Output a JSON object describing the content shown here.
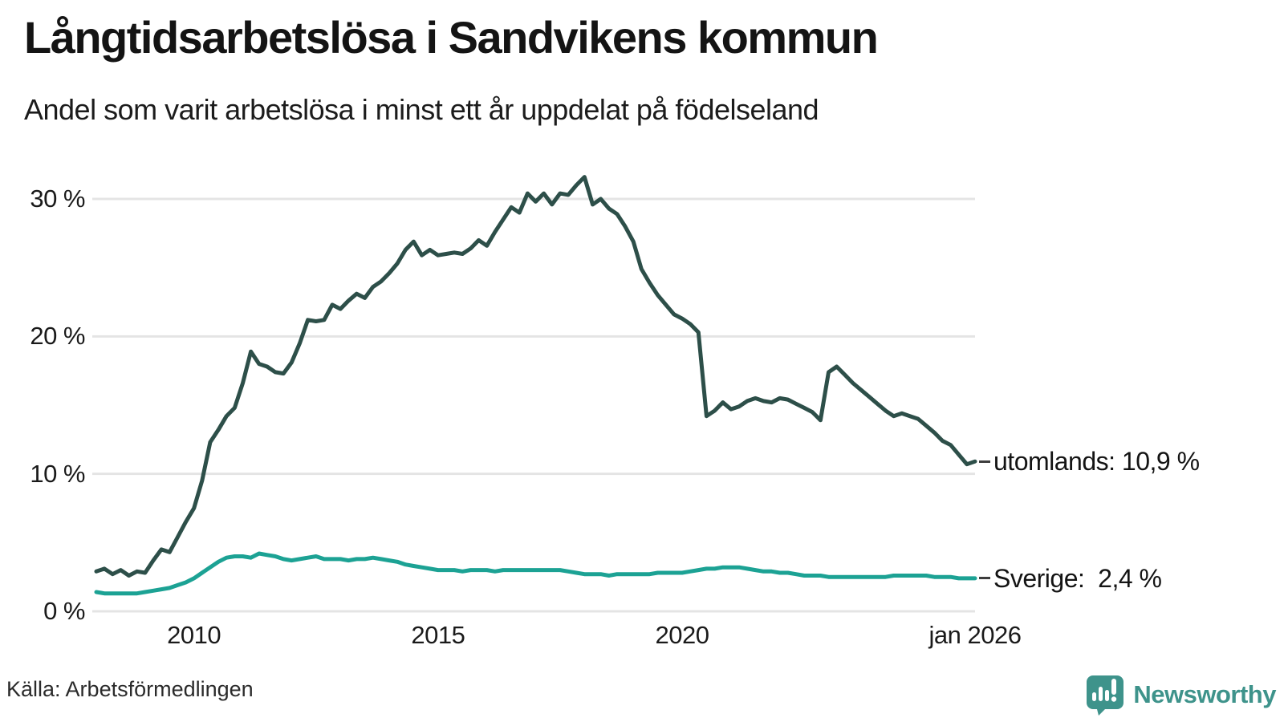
{
  "header": {
    "title": "Långtidsarbetslösa i Sandvikens kommun",
    "subtitle": "Andel som varit arbetslösa i minst ett år uppdelat på födelseland"
  },
  "footer": {
    "source": "Källa: Arbetsförmedlingen",
    "brand": "Newsworthy",
    "brand_color": "#3e938b"
  },
  "colors": {
    "utomlands_line": "#2d4f49",
    "sverige_line": "#1ca294",
    "gridline": "#e4e4e4",
    "text": "#1a1a1a",
    "dash": "#3d3d3d"
  },
  "chart_data": {
    "type": "line",
    "title": "Långtidsarbetslösa i Sandvikens kommun",
    "subtitle": "Andel som varit arbetslösa i minst ett år uppdelat på födelseland",
    "xlabel": "",
    "ylabel": "",
    "grid": "horizontal",
    "legend_position": "right-end-labels",
    "xlim": [
      2008,
      2026
    ],
    "ylim": [
      0,
      30
    ],
    "x_start": 2008,
    "x_step": 0.1666667,
    "y_ticks": [
      {
        "label": "0 %",
        "value": 0
      },
      {
        "label": "10 %",
        "value": 10
      },
      {
        "label": "20 %",
        "value": 20
      },
      {
        "label": "30 %",
        "value": 30
      }
    ],
    "x_ticks": [
      {
        "label": "2010",
        "value": 2010
      },
      {
        "label": "2015",
        "value": 2015
      },
      {
        "label": "2020",
        "value": 2020
      },
      {
        "label": "jan 2026",
        "value": 2026
      }
    ],
    "series": [
      {
        "name": "utomlands",
        "label": "utomlands: 10,9 %",
        "last_value_text": "10,9 %",
        "color": "#2d4f49",
        "values": [
          2.9,
          3.1,
          2.7,
          3.0,
          2.6,
          2.9,
          2.8,
          3.7,
          4.5,
          4.3,
          5.4,
          6.5,
          7.5,
          9.5,
          12.3,
          13.2,
          14.2,
          14.8,
          16.6,
          18.9,
          18.0,
          17.8,
          17.4,
          17.3,
          18.1,
          19.5,
          21.2,
          21.1,
          21.2,
          22.3,
          22.0,
          22.6,
          23.1,
          22.8,
          23.6,
          24.0,
          24.6,
          25.3,
          26.3,
          26.9,
          25.9,
          26.3,
          25.9,
          26.0,
          26.1,
          26.0,
          26.4,
          27.0,
          26.6,
          27.6,
          28.5,
          29.4,
          29.0,
          30.4,
          29.8,
          30.4,
          29.6,
          30.4,
          30.3,
          31.0,
          31.6,
          29.6,
          30.0,
          29.3,
          28.9,
          28.0,
          26.9,
          24.9,
          23.9,
          23.0,
          22.3,
          21.6,
          21.3,
          20.9,
          20.3,
          14.2,
          14.6,
          15.2,
          14.7,
          14.9,
          15.3,
          15.5,
          15.3,
          15.2,
          15.5,
          15.4,
          15.1,
          14.8,
          14.5,
          13.9,
          17.4,
          17.8,
          17.2,
          16.6,
          16.1,
          15.6,
          15.1,
          14.6,
          14.2,
          14.4,
          14.2,
          14.0,
          13.5,
          13.0,
          12.4,
          12.1,
          11.4,
          10.7,
          10.9
        ]
      },
      {
        "name": "Sverige",
        "label": "Sverige:  2,4 %",
        "last_value_text": "2,4 %",
        "color": "#1ca294",
        "values": [
          1.4,
          1.3,
          1.3,
          1.3,
          1.3,
          1.3,
          1.4,
          1.5,
          1.6,
          1.7,
          1.9,
          2.1,
          2.4,
          2.8,
          3.2,
          3.6,
          3.9,
          4.0,
          4.0,
          3.9,
          4.2,
          4.1,
          4.0,
          3.8,
          3.7,
          3.8,
          3.9,
          4.0,
          3.8,
          3.8,
          3.8,
          3.7,
          3.8,
          3.8,
          3.9,
          3.8,
          3.7,
          3.6,
          3.4,
          3.3,
          3.2,
          3.1,
          3.0,
          3.0,
          3.0,
          2.9,
          3.0,
          3.0,
          3.0,
          2.9,
          3.0,
          3.0,
          3.0,
          3.0,
          3.0,
          3.0,
          3.0,
          3.0,
          2.9,
          2.8,
          2.7,
          2.7,
          2.7,
          2.6,
          2.7,
          2.7,
          2.7,
          2.7,
          2.7,
          2.8,
          2.8,
          2.8,
          2.8,
          2.9,
          3.0,
          3.1,
          3.1,
          3.2,
          3.2,
          3.2,
          3.1,
          3.0,
          2.9,
          2.9,
          2.8,
          2.8,
          2.7,
          2.6,
          2.6,
          2.6,
          2.5,
          2.5,
          2.5,
          2.5,
          2.5,
          2.5,
          2.5,
          2.5,
          2.6,
          2.6,
          2.6,
          2.6,
          2.6,
          2.5,
          2.5,
          2.5,
          2.4,
          2.4,
          2.4
        ]
      }
    ]
  }
}
